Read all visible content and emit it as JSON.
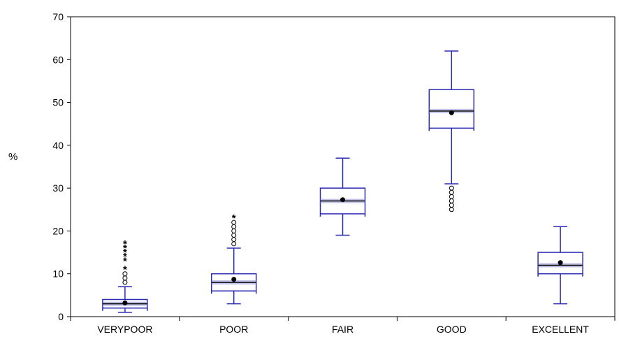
{
  "chart_data": {
    "type": "box",
    "ylabel": "%",
    "ylim": [
      0,
      70
    ],
    "yticks": [
      0,
      10,
      20,
      30,
      40,
      50,
      60,
      70
    ],
    "grid": false,
    "colors": {
      "box": "#2b2bb4",
      "median_band": "#8f8fd6",
      "mean": "#000000",
      "axis": "#000000"
    },
    "categories": [
      "VERYPOOR",
      "POOR",
      "FAIR",
      "GOOD",
      "EXCELLENT"
    ],
    "boxes": [
      {
        "category": "VERYPOOR",
        "whisker_low": 1,
        "q1": 2,
        "median": 3,
        "q3": 4,
        "whisker_high": 7,
        "mean": 3.2,
        "outliers_near": [
          8,
          9,
          10
        ],
        "outliers_far": [
          11,
          13,
          14,
          15,
          16,
          17
        ]
      },
      {
        "category": "POOR",
        "whisker_low": 3,
        "q1": 6,
        "median": 8,
        "q3": 10,
        "whisker_high": 16,
        "mean": 8.7,
        "outliers_near": [
          17,
          18,
          19,
          20,
          21,
          22
        ],
        "outliers_far": [
          23
        ]
      },
      {
        "category": "FAIR",
        "whisker_low": 19,
        "q1": 24,
        "median": 27,
        "q3": 30,
        "whisker_high": 37,
        "mean": 27.3,
        "outliers_near": [],
        "outliers_far": []
      },
      {
        "category": "GOOD",
        "whisker_low": 31,
        "q1": 44,
        "median": 48,
        "q3": 53,
        "whisker_high": 62,
        "mean": 47.6,
        "outliers_near": [
          25,
          26,
          27,
          28,
          29,
          30
        ],
        "outliers_far": []
      },
      {
        "category": "EXCELLENT",
        "whisker_low": 3,
        "q1": 10,
        "median": 12,
        "q3": 15,
        "whisker_high": 21,
        "mean": 12.6,
        "outliers_near": [],
        "outliers_far": []
      }
    ]
  }
}
